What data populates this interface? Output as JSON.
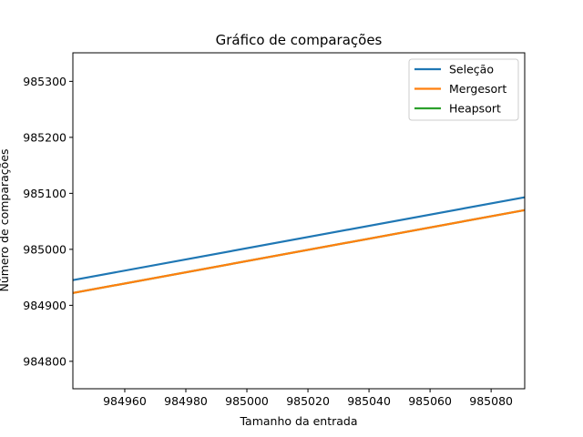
{
  "chart_data": {
    "type": "line",
    "title": "Gráfico de comparações",
    "xlabel": "Tamanho da entrada",
    "ylabel": "Número de comparações",
    "xlim": [
      984943,
      985091
    ],
    "ylim": [
      984751,
      985351
    ],
    "xticks": [
      984960,
      984980,
      985000,
      985020,
      985040,
      985060,
      985080
    ],
    "yticks": [
      984800,
      984900,
      985000,
      985100,
      985200,
      985300
    ],
    "grid": false,
    "legend_position": "top-right",
    "series": [
      {
        "name": "Seleção",
        "color": "#1f77b4",
        "x": [
          984943,
          985091
        ],
        "y": [
          984945,
          985093
        ]
      },
      {
        "name": "Mergesort",
        "color": "#ff7f0e",
        "x": [
          984943,
          985091
        ],
        "y": [
          984922,
          985070
        ]
      },
      {
        "name": "Heapsort",
        "color": "#2ca02c",
        "x": [
          984943,
          985091
        ],
        "y": [
          984922,
          985070
        ]
      }
    ]
  }
}
